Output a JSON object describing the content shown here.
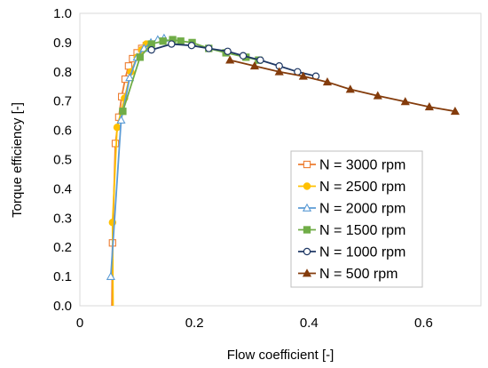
{
  "chart_data": {
    "type": "scatter",
    "xlabel": "Flow coefficient [-]",
    "ylabel": "Torque efficiency [-]",
    "xlim": [
      0,
      0.7
    ],
    "ylim": [
      0,
      1.0
    ],
    "xticks": [
      0,
      0.2,
      0.4,
      0.6
    ],
    "xtick_labels": [
      "0",
      "0.2",
      "0.4",
      "0.6"
    ],
    "yticks": [
      0,
      0.1,
      0.2,
      0.3,
      0.4,
      0.5,
      0.6,
      0.7,
      0.8,
      0.9,
      1.0
    ],
    "ytick_labels": [
      "0.0",
      "0.1",
      "0.2",
      "0.3",
      "0.4",
      "0.5",
      "0.6",
      "0.7",
      "0.8",
      "0.9",
      "1.0"
    ],
    "grid": false,
    "legend_position": "inside, lower right",
    "series": [
      {
        "name": "N = 3000 rpm",
        "color": "#ED7D31",
        "marker": "square-open",
        "x": [
          0.057,
          0.062,
          0.068,
          0.073,
          0.079,
          0.085,
          0.092,
          0.1,
          0.108,
          0.116
        ],
        "y": [
          0.215,
          0.555,
          0.645,
          0.715,
          0.775,
          0.82,
          0.845,
          0.865,
          0.88,
          0.89
        ]
      },
      {
        "name": "N = 2500 rpm",
        "color": "#FFC000",
        "marker": "circle-filled",
        "x": [
          0.057,
          0.065,
          0.078,
          0.089,
          0.1,
          0.108,
          0.116
        ],
        "y": [
          0.285,
          0.61,
          0.71,
          0.8,
          0.85,
          0.875,
          0.895
        ]
      },
      {
        "name": "N = 2000 rpm",
        "color": "#5B9BD5",
        "marker": "triangle-open",
        "x": [
          0.054,
          0.072,
          0.087,
          0.1,
          0.112,
          0.124,
          0.136,
          0.147
        ],
        "y": [
          0.1,
          0.635,
          0.78,
          0.85,
          0.88,
          0.9,
          0.91,
          0.915
        ]
      },
      {
        "name": "N = 1500 rpm",
        "color": "#70AD47",
        "marker": "square-filled",
        "x": [
          0.075,
          0.105,
          0.125,
          0.145,
          0.162,
          0.176,
          0.196,
          0.225,
          0.255,
          0.29,
          0.312
        ],
        "y": [
          0.665,
          0.85,
          0.895,
          0.905,
          0.91,
          0.905,
          0.9,
          0.88,
          0.865,
          0.85,
          0.84
        ]
      },
      {
        "name": "N = 1000 rpm",
        "color": "#1F3864",
        "marker": "circle-open",
        "x": [
          0.125,
          0.16,
          0.195,
          0.225,
          0.258,
          0.285,
          0.315,
          0.348,
          0.38,
          0.412
        ],
        "y": [
          0.875,
          0.895,
          0.89,
          0.88,
          0.87,
          0.855,
          0.84,
          0.82,
          0.8,
          0.785
        ]
      },
      {
        "name": "N = 500 rpm",
        "color": "#843C0C",
        "marker": "triangle-filled",
        "x": [
          0.262,
          0.305,
          0.348,
          0.39,
          0.432,
          0.472,
          0.52,
          0.568,
          0.61,
          0.655
        ],
        "y": [
          0.84,
          0.82,
          0.8,
          0.785,
          0.765,
          0.74,
          0.718,
          0.698,
          0.68,
          0.665
        ]
      }
    ]
  }
}
